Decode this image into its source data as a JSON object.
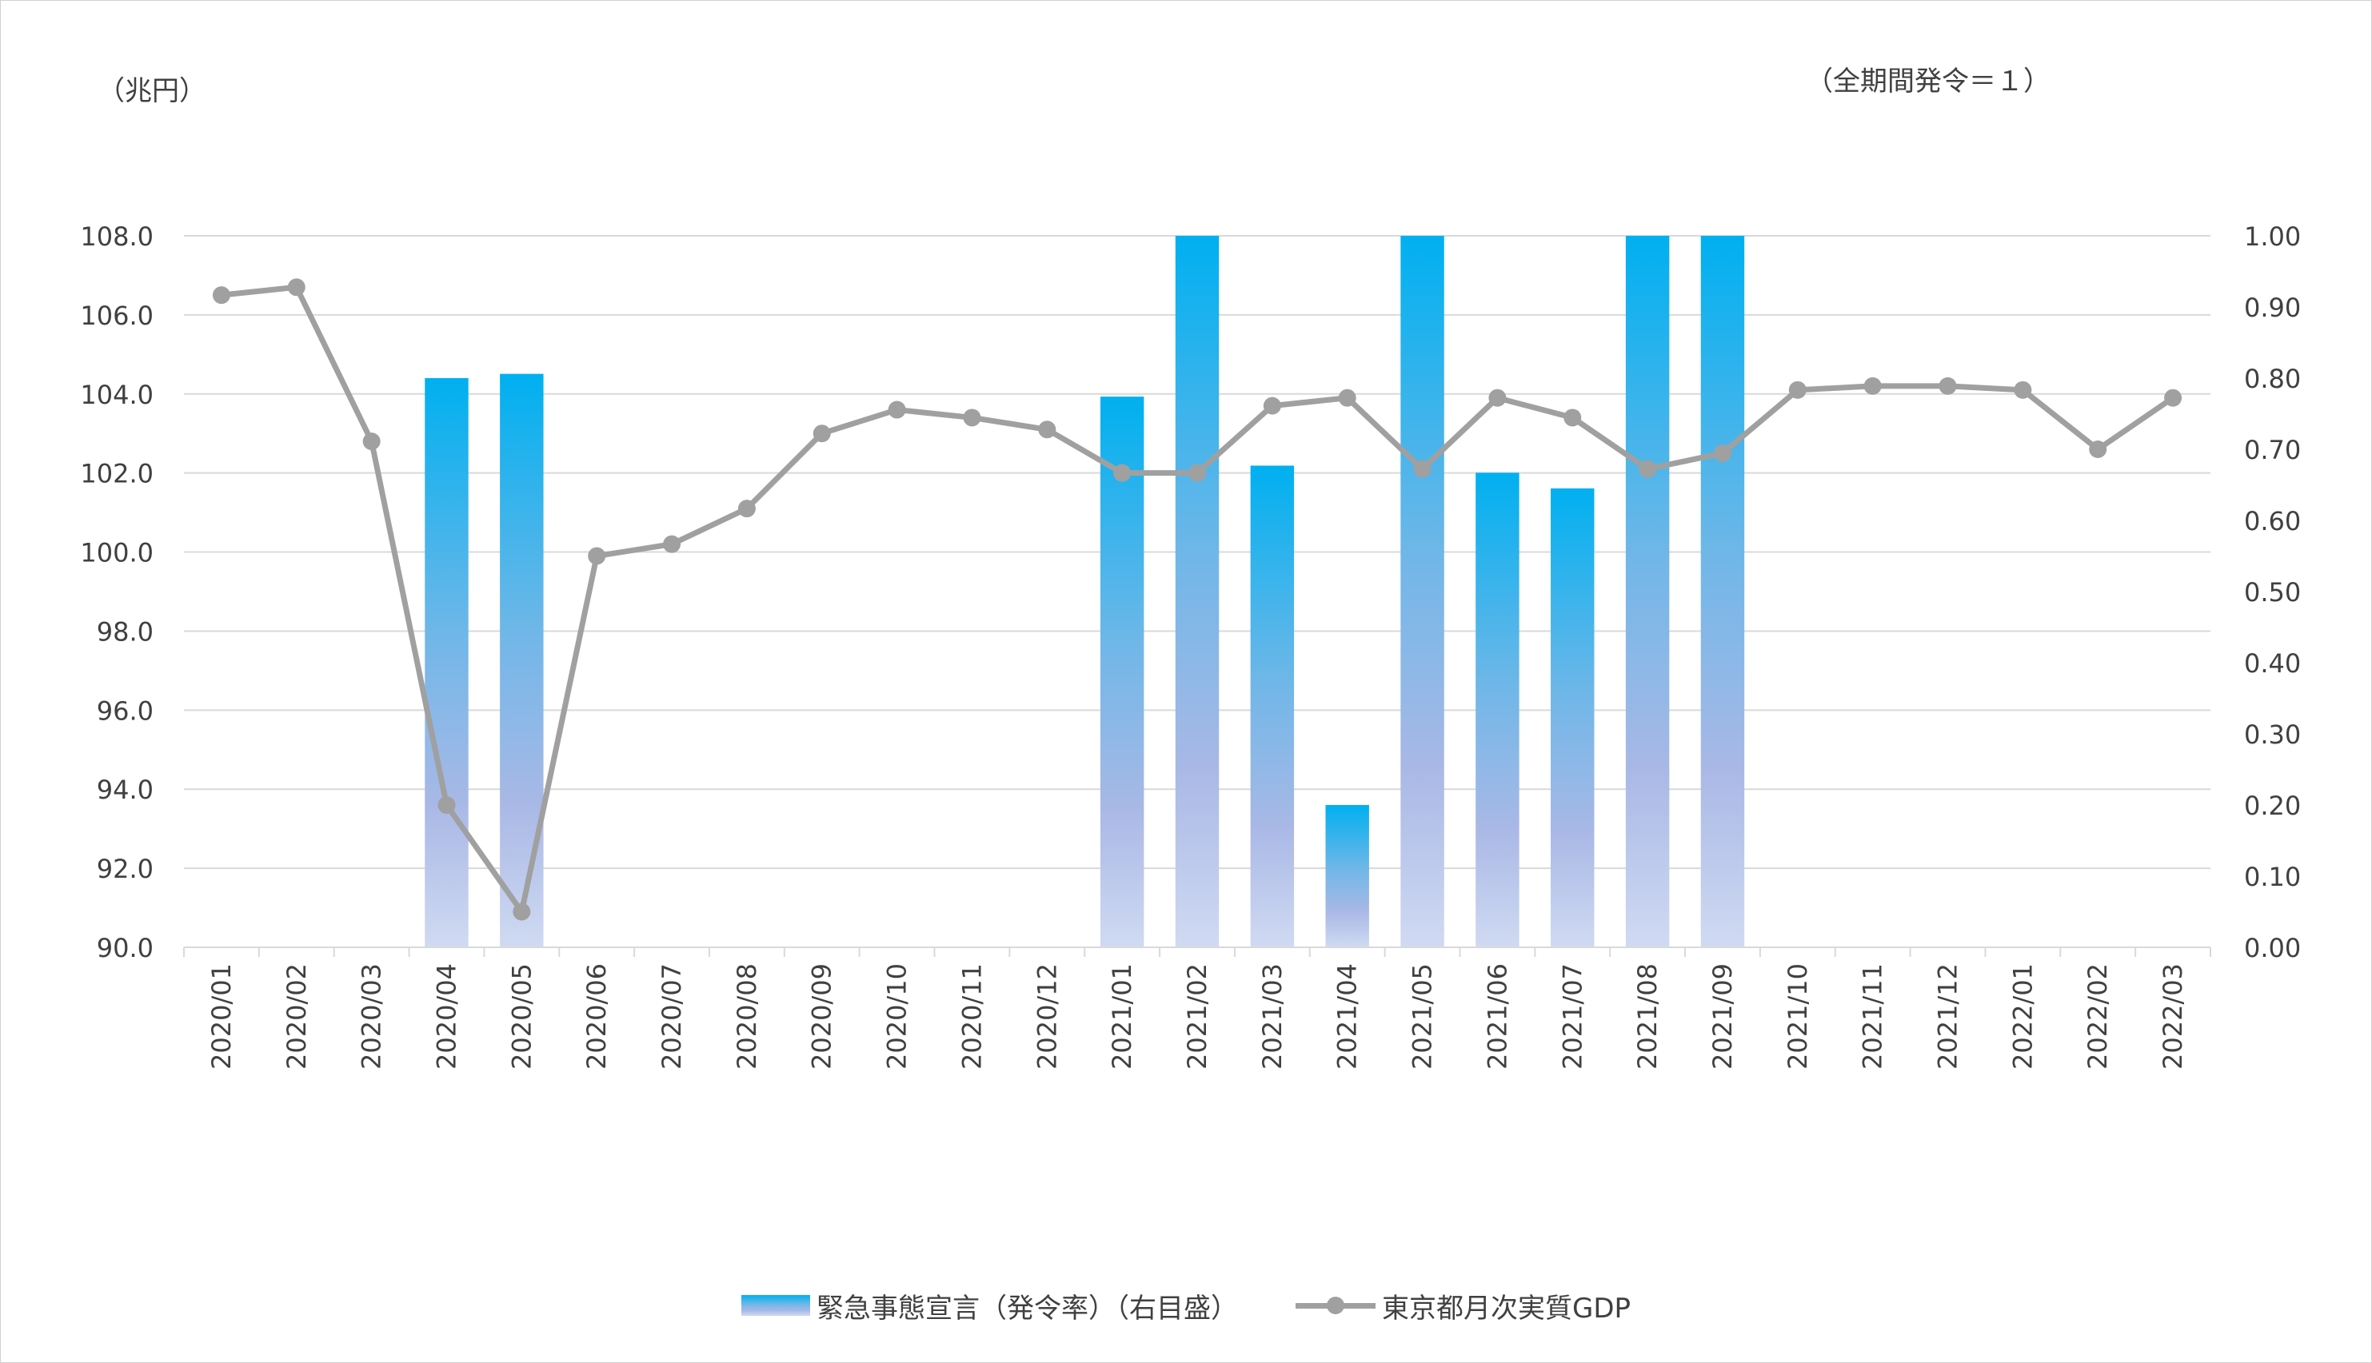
{
  "chart_data": {
    "type": "bar+line",
    "title": "",
    "categories": [
      "2020/01",
      "2020/02",
      "2020/03",
      "2020/04",
      "2020/05",
      "2020/06",
      "2020/07",
      "2020/08",
      "2020/09",
      "2020/10",
      "2020/11",
      "2020/12",
      "2021/01",
      "2021/02",
      "2021/03",
      "2021/04",
      "2021/05",
      "2021/06",
      "2021/07",
      "2021/08",
      "2021/09",
      "2021/10",
      "2021/11",
      "2021/12",
      "2022/01",
      "2022/02",
      "2022/03"
    ],
    "left_axis": {
      "unit_label": "（兆円）",
      "ylim": [
        90,
        108
      ],
      "ticks": [
        "90.0",
        "92.0",
        "94.0",
        "96.0",
        "98.0",
        "100.0",
        "102.0",
        "104.0",
        "106.0",
        "108.0"
      ]
    },
    "right_axis": {
      "unit_label": "（全期間発令＝１）",
      "ylim": [
        0,
        1
      ],
      "ticks": [
        "0.00",
        "0.10",
        "0.20",
        "0.30",
        "0.40",
        "0.50",
        "0.60",
        "0.70",
        "0.80",
        "0.90",
        "1.00"
      ]
    },
    "series": [
      {
        "name": "緊急事態宣言（発令率）（右目盛）",
        "type": "bar",
        "axis": "right",
        "values": [
          0,
          0,
          0,
          0.8,
          0.806,
          0,
          0,
          0,
          0,
          0,
          0,
          0,
          0.774,
          1.0,
          0.677,
          0.2,
          1.0,
          0.667,
          0.645,
          1.0,
          1.0,
          0,
          0,
          0,
          0,
          0,
          0
        ]
      },
      {
        "name": "東京都月次実質GDP",
        "type": "line",
        "axis": "left",
        "values": [
          106.5,
          106.7,
          102.8,
          93.6,
          90.9,
          99.9,
          100.2,
          101.1,
          103.0,
          103.6,
          103.4,
          103.1,
          102.0,
          102.0,
          103.7,
          103.9,
          102.1,
          103.9,
          103.4,
          102.1,
          102.5,
          104.1,
          104.2,
          104.2,
          104.1,
          102.6,
          103.9
        ]
      }
    ],
    "grid": true,
    "legend_position": "bottom",
    "colors": {
      "bar_top": "#00b0f0",
      "bar_mid": "#a9b8e6",
      "bar_bottom": "#d0daf2",
      "line": "#a0a0a0",
      "grid": "#d9d9d9",
      "text": "#404040"
    }
  }
}
